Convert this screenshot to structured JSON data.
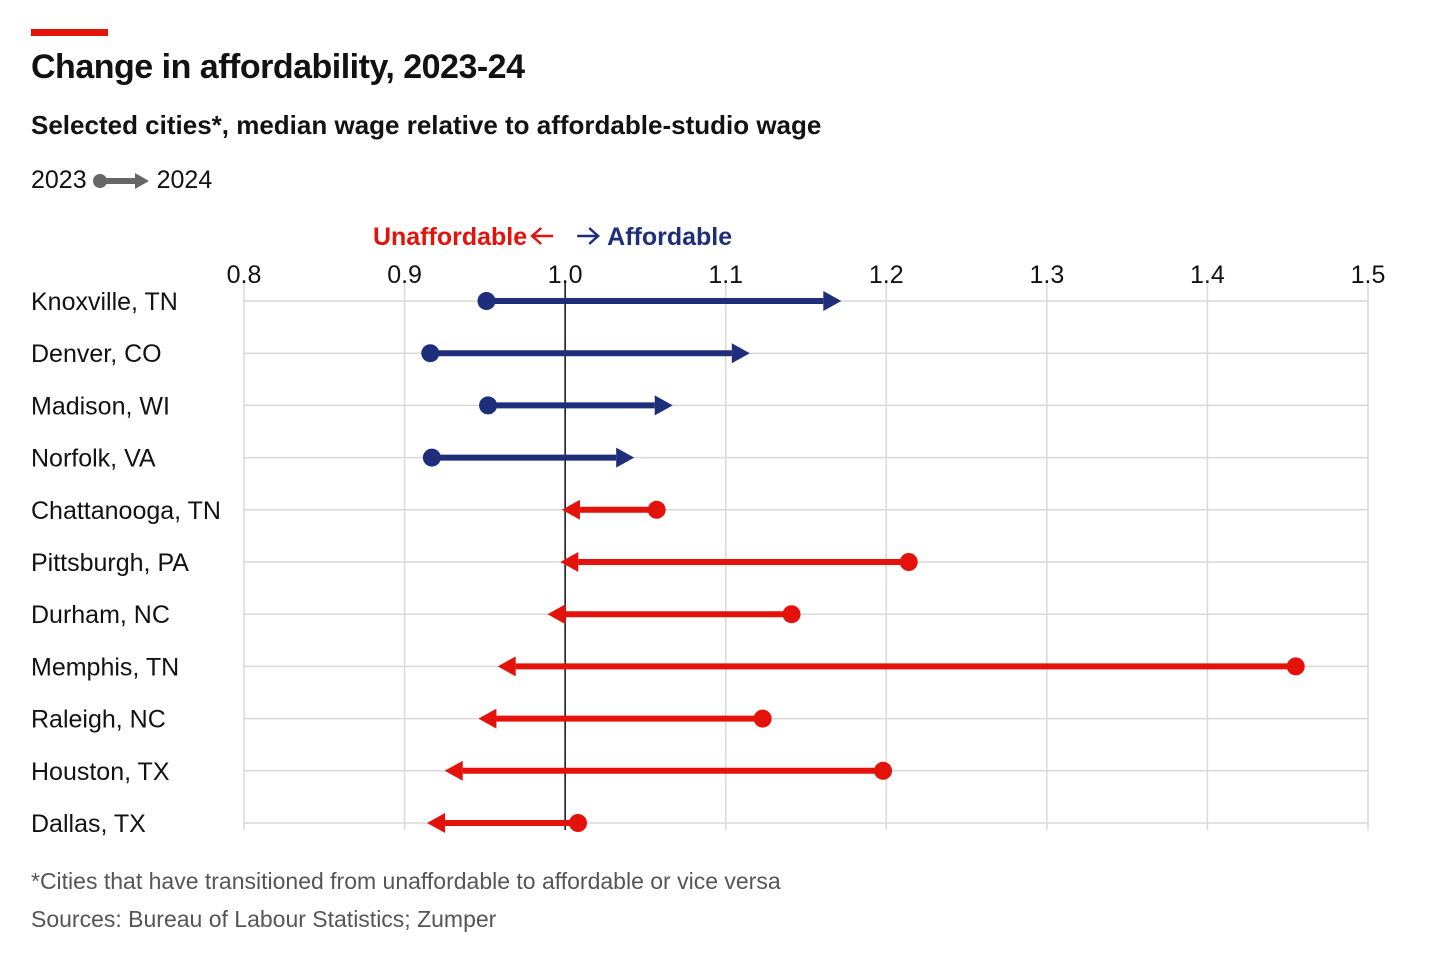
{
  "header": {
    "title": "Change in affordability, 2023-24",
    "subtitle": "Selected cities*, median wage relative to affordable-studio wage",
    "legend_start": "2023",
    "legend_end": "2024"
  },
  "footer": {
    "footnote": "*Cities that have transitioned from unaffordable to affordable or vice versa",
    "source": "Sources: Bureau of Labour Statistics; Zumper"
  },
  "colors": {
    "accent": "#e3120b",
    "improved": "#1f2e7a",
    "worsened": "#e3120b",
    "grid": "#d9d9d9",
    "legend_arrow": "#666666"
  },
  "chart_data": {
    "type": "arrow-dumbbell",
    "xlim": [
      0.8,
      1.5
    ],
    "x_ticks": [
      "0.8",
      "0.9",
      "1.0",
      "1.1",
      "1.2",
      "1.3",
      "1.4",
      "1.5"
    ],
    "x_tick_values": [
      0.8,
      0.9,
      1.0,
      1.1,
      1.2,
      1.3,
      1.4,
      1.5
    ],
    "reference_line": 1.0,
    "grid": true,
    "direction_labels": {
      "left": "Unaffordable",
      "right": "Affordable"
    },
    "series": [
      {
        "city": "Knoxville, TN",
        "y2023": 0.951,
        "y2024": 1.172
      },
      {
        "city": "Denver, CO",
        "y2023": 0.916,
        "y2024": 1.115
      },
      {
        "city": "Madison, WI",
        "y2023": 0.952,
        "y2024": 1.067
      },
      {
        "city": "Norfolk, VA",
        "y2023": 0.917,
        "y2024": 1.043
      },
      {
        "city": "Chattanooga, TN",
        "y2023": 1.057,
        "y2024": 0.998
      },
      {
        "city": "Pittsburgh, PA",
        "y2023": 1.214,
        "y2024": 0.997
      },
      {
        "city": "Durham, NC",
        "y2023": 1.141,
        "y2024": 0.989
      },
      {
        "city": "Memphis, TN",
        "y2023": 1.455,
        "y2024": 0.958
      },
      {
        "city": "Raleigh, NC",
        "y2023": 1.123,
        "y2024": 0.946
      },
      {
        "city": "Houston, TX",
        "y2023": 1.198,
        "y2024": 0.925
      },
      {
        "city": "Dallas, TX",
        "y2023": 1.008,
        "y2024": 0.914
      }
    ]
  }
}
